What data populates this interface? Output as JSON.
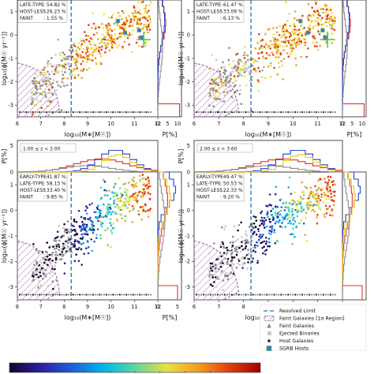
{
  "colors": {
    "faint_hatch": "#8a4a9a",
    "resolved_line": "#1f6fb3",
    "faint_point": "#8c8c8c",
    "ejected_point": "#c8c8c8",
    "host_point": "#1a1a1a",
    "sgrb_face": "#4a6fd0",
    "sgrb_edge": "#59c05a",
    "green_errbar": "#33cc33",
    "hist_red": "#e0302a",
    "hist_blue": "#1f3fd0",
    "hist_yellow": "#f2c200",
    "hist_gray": "#8c8c8c",
    "colorbar_stops": [
      "#1a0030",
      "#2d1fa0",
      "#1e5fd8",
      "#00b8e8",
      "#5ad6a0",
      "#e8e040",
      "#f2a020",
      "#e04010",
      "#a00000"
    ]
  },
  "axes": {
    "xlabel": "log₁₀(M∗[M☉])",
    "ylabel": "log₁₀(ϕ[M☉ yr⁻¹])",
    "px_label": "P[%]",
    "x_ticks": [
      "6",
      "7",
      "8",
      "9",
      "10",
      "11",
      "12"
    ],
    "y_ticks": [
      "1",
      "0",
      "-1",
      "-2",
      "-3"
    ],
    "p_ticks_top": [
      "0",
      "5",
      "10"
    ],
    "p_ticks_bottom": [
      "0",
      "5"
    ],
    "p_hist_ticks": [
      "0",
      "5"
    ]
  },
  "panels": [
    {
      "z_label": "",
      "stats": [
        {
          "name": "LATE-TYPE",
          "value": ":   54.82 %"
        },
        {
          "name": "HOST-LESS",
          "value": ":   26.23 %"
        },
        {
          "name": "FAINT",
          "value": ":     1.55 %"
        }
      ]
    },
    {
      "z_label": "",
      "stats": [
        {
          "name": "LATE-TYPE",
          "value": ":   61.47 %"
        },
        {
          "name": "HOST-LESS",
          "value": ":   33.09 %"
        },
        {
          "name": "FAINT",
          "value": ":     6.13 %"
        }
      ]
    },
    {
      "z_label": "1.00 ≤ z < 2.00",
      "stats": [
        {
          "name": "EARLY-TYPE",
          "value": ":  41.87 %"
        },
        {
          "name": "LATE-TYPE",
          "value": ":   58.13 %"
        },
        {
          "name": "HOST-LESS",
          "value": ":  33.40 %"
        },
        {
          "name": "FAINT",
          "value": ":      9.85 %"
        }
      ]
    },
    {
      "z_label": "2.00 ≤ z < 3.60",
      "stats": [
        {
          "name": "EARLY-TYPE",
          "value": ":  49.47 %"
        },
        {
          "name": "LATE-TYPE",
          "value": ":   50.53 %"
        },
        {
          "name": "HOST-LESS",
          "value": ":  22.33 %"
        },
        {
          "name": "FAINT",
          "value": ":     9.20 %"
        }
      ]
    }
  ],
  "legend": [
    {
      "key": "resolved",
      "label": "Resolved Limit"
    },
    {
      "key": "faint_region",
      "label": "Faint Galaxies [1σ Region]"
    },
    {
      "key": "faint",
      "label": "Faint Galaxies"
    },
    {
      "key": "ejected",
      "label": "Ejected Binaries"
    },
    {
      "key": "host",
      "label": "Host Galaxies"
    },
    {
      "key": "sgrb",
      "label": "SGRB Hosts"
    }
  ],
  "chart_data": {
    "type": "scatter",
    "x_range": [
      6,
      12
    ],
    "y_range": [
      -3.5,
      1.5
    ],
    "resolved_limit_x": 8.3,
    "p_range_top": [
      0,
      12
    ],
    "p_range_bottom": [
      0,
      6
    ],
    "scatter_trend": {
      "x": [
        7.5,
        8.5,
        9.5,
        10.5,
        11.3
      ],
      "y": [
        -1.8,
        -1.0,
        -0.3,
        0.3,
        0.7
      ],
      "scatter_sigma": 0.6
    },
    "sgrb_hosts": [
      {
        "x": 10.3,
        "y": 0.6
      },
      {
        "x": 10.6,
        "y": 0.1
      },
      {
        "x": 11.2,
        "y": 0.2
      },
      {
        "x": 11.3,
        "y": -0.1
      }
    ],
    "green_errorbar": {
      "x": 11.4,
      "y": -0.2,
      "yerr": 0.35,
      "xerr": 0.3
    }
  }
}
